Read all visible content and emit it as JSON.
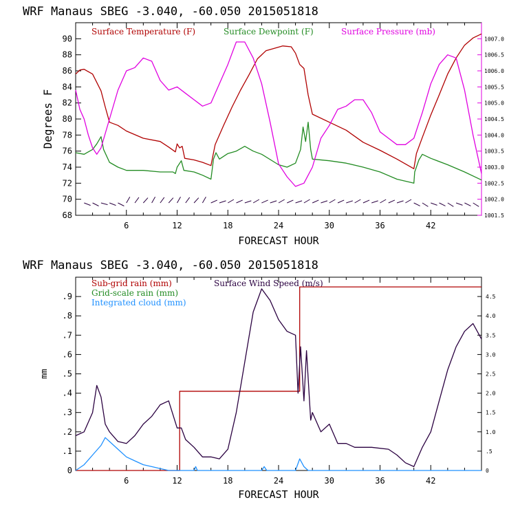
{
  "chart_data": [
    {
      "type": "line",
      "title": "WRF   Manaus SBEG   -3.040, -60.050  2015051818",
      "xlabel": "FORECAST HOUR",
      "ylabel": "Degrees F",
      "xlim": [
        0,
        48
      ],
      "x_ticks": [
        "6",
        "12",
        "18",
        "24",
        "30",
        "36",
        "42"
      ],
      "y_ticks": [
        "68",
        "70",
        "72",
        "74",
        "76",
        "78",
        "80",
        "82",
        "84",
        "86",
        "88",
        "90"
      ],
      "ylim": [
        68,
        92
      ],
      "y2_ticks": [
        "1001.5",
        "1002.0",
        "1002.5",
        "1003.0",
        "1003.5",
        "1004.0",
        "1004.5",
        "1005.0",
        "1005.5",
        "1006.0",
        "1006.5",
        "1007.0"
      ],
      "y2lim": [
        1001.5,
        1007.5
      ],
      "series": [
        {
          "name": "Surface Temperature (F)",
          "color": "#b00000",
          "axis": "left",
          "points": [
            [
              0,
              85.6
            ],
            [
              0.5,
              86.1
            ],
            [
              1,
              86.2
            ],
            [
              2,
              85.6
            ],
            [
              3,
              83.5
            ],
            [
              3.5,
              81.5
            ],
            [
              4,
              79.6
            ],
            [
              5,
              79.2
            ],
            [
              6,
              78.5
            ],
            [
              8,
              77.6
            ],
            [
              10,
              77.2
            ],
            [
              11,
              76.5
            ],
            [
              11.8,
              75.9
            ],
            [
              12,
              76.9
            ],
            [
              12.3,
              76.4
            ],
            [
              12.6,
              76.6
            ],
            [
              12.9,
              75.1
            ],
            [
              14,
              74.9
            ],
            [
              15,
              74.6
            ],
            [
              16,
              74.2
            ],
            [
              16.5,
              76.8
            ],
            [
              17.5,
              79.2
            ],
            [
              18.5,
              81.5
            ],
            [
              19.5,
              83.6
            ],
            [
              20.5,
              85.5
            ],
            [
              21.5,
              87.5
            ],
            [
              22.5,
              88.5
            ],
            [
              23.5,
              88.8
            ],
            [
              24.5,
              89.1
            ],
            [
              25.5,
              89.0
            ],
            [
              26,
              88.2
            ],
            [
              26.5,
              86.8
            ],
            [
              27,
              86.3
            ],
            [
              27.5,
              83.0
            ],
            [
              28,
              80.6
            ],
            [
              30,
              79.6
            ],
            [
              32,
              78.6
            ],
            [
              34,
              77.1
            ],
            [
              36,
              76.1
            ],
            [
              38,
              75.0
            ],
            [
              40,
              73.8
            ],
            [
              40.3,
              75.7
            ],
            [
              41,
              77.7
            ],
            [
              42,
              80.5
            ],
            [
              43,
              83.0
            ],
            [
              44,
              85.6
            ],
            [
              45,
              87.6
            ],
            [
              46,
              89.2
            ],
            [
              47,
              90.1
            ],
            [
              48,
              90.6
            ]
          ]
        },
        {
          "name": "Surface Dewpoint (F)",
          "color": "#228b22",
          "axis": "left",
          "points": [
            [
              0,
              75.8
            ],
            [
              1,
              75.6
            ],
            [
              2,
              76.2
            ],
            [
              2.5,
              76.9
            ],
            [
              3,
              77.8
            ],
            [
              3.3,
              76.2
            ],
            [
              4,
              74.6
            ],
            [
              5,
              74.0
            ],
            [
              6,
              73.6
            ],
            [
              8,
              73.6
            ],
            [
              10,
              73.4
            ],
            [
              11.5,
              73.4
            ],
            [
              11.8,
              73.2
            ],
            [
              12,
              74.0
            ],
            [
              12.5,
              74.8
            ],
            [
              12.8,
              73.6
            ],
            [
              14,
              73.4
            ],
            [
              15,
              73.0
            ],
            [
              16,
              72.5
            ],
            [
              16.3,
              75.0
            ],
            [
              16.6,
              75.8
            ],
            [
              17,
              75.0
            ],
            [
              18,
              75.7
            ],
            [
              19,
              76.0
            ],
            [
              20,
              76.6
            ],
            [
              21,
              76.0
            ],
            [
              22,
              75.6
            ],
            [
              24,
              74.3
            ],
            [
              25,
              74.0
            ],
            [
              26,
              74.5
            ],
            [
              26.6,
              76.2
            ],
            [
              26.9,
              79.0
            ],
            [
              27.2,
              77.2
            ],
            [
              27.5,
              79.6
            ],
            [
              27.8,
              76.2
            ],
            [
              28,
              75.0
            ],
            [
              30,
              74.8
            ],
            [
              32,
              74.5
            ],
            [
              34,
              74.0
            ],
            [
              36,
              73.4
            ],
            [
              38,
              72.5
            ],
            [
              40,
              72.0
            ],
            [
              40.1,
              73.4
            ],
            [
              40.6,
              74.9
            ],
            [
              41,
              75.6
            ],
            [
              42,
              75.1
            ],
            [
              44,
              74.3
            ],
            [
              46,
              73.4
            ],
            [
              48,
              72.4
            ]
          ]
        },
        {
          "name": "Surface Pressure (mb)",
          "color": "#e000e0",
          "axis": "right",
          "points": [
            [
              0,
              1005.4
            ],
            [
              0.5,
              1004.8
            ],
            [
              1,
              1004.5
            ],
            [
              1.5,
              1004.0
            ],
            [
              2,
              1003.6
            ],
            [
              2.5,
              1003.4
            ],
            [
              3,
              1003.6
            ],
            [
              4,
              1004.5
            ],
            [
              5,
              1005.4
            ],
            [
              6,
              1006.0
            ],
            [
              7,
              1006.1
            ],
            [
              8,
              1006.4
            ],
            [
              9,
              1006.3
            ],
            [
              10,
              1005.7
            ],
            [
              11,
              1005.4
            ],
            [
              12,
              1005.5
            ],
            [
              13,
              1005.3
            ],
            [
              14,
              1005.1
            ],
            [
              15,
              1004.9
            ],
            [
              16,
              1005.0
            ],
            [
              17,
              1005.6
            ],
            [
              18,
              1006.2
            ],
            [
              19,
              1006.9
            ],
            [
              20,
              1006.9
            ],
            [
              21,
              1006.4
            ],
            [
              22,
              1005.6
            ],
            [
              23,
              1004.4
            ],
            [
              24,
              1003.1
            ],
            [
              25,
              1002.7
            ],
            [
              26,
              1002.4
            ],
            [
              27,
              1002.5
            ],
            [
              28,
              1003.0
            ],
            [
              29,
              1003.9
            ],
            [
              30,
              1004.3
            ],
            [
              31,
              1004.8
            ],
            [
              32,
              1004.9
            ],
            [
              33,
              1005.1
            ],
            [
              34,
              1005.1
            ],
            [
              35,
              1004.7
            ],
            [
              36,
              1004.1
            ],
            [
              37,
              1003.9
            ],
            [
              38,
              1003.7
            ],
            [
              39,
              1003.7
            ],
            [
              40,
              1003.9
            ],
            [
              41,
              1004.7
            ],
            [
              42,
              1005.6
            ],
            [
              43,
              1006.2
            ],
            [
              44,
              1006.5
            ],
            [
              45,
              1006.4
            ],
            [
              46,
              1005.4
            ],
            [
              47,
              1004.0
            ],
            [
              48,
              1002.8
            ]
          ]
        }
      ]
    },
    {
      "type": "line",
      "title": "WRF   Manaus SBEG   -3.040, -60.050  2015051818",
      "xlabel": "FORECAST HOUR",
      "ylabel": "mm",
      "xlim": [
        0,
        48
      ],
      "x_ticks": [
        "6",
        "12",
        "18",
        "24",
        "30",
        "36",
        "42"
      ],
      "y_ticks": [
        "0",
        ".1",
        ".2",
        ".3",
        ".4",
        ".5",
        ".6",
        ".7",
        ".8",
        ".9"
      ],
      "ylim": [
        0,
        1.0
      ],
      "y2_ticks": [
        "0",
        ".5",
        "1.0",
        "1.5",
        "2.0",
        "2.5",
        "3.0",
        "3.5",
        "4.0",
        "4.5"
      ],
      "y2lim": [
        0,
        5.0
      ],
      "series": [
        {
          "name": "Sub-grid rain (mm)",
          "color": "#b00000",
          "axis": "left",
          "step": true,
          "points": [
            [
              0,
              0
            ],
            [
              12.3,
              0
            ],
            [
              12.3,
              0.41
            ],
            [
              26.5,
              0.41
            ],
            [
              26.5,
              0.95
            ],
            [
              48,
              0.95
            ]
          ]
        },
        {
          "name": "Grid-scale rain (mm)",
          "color": "#228b22",
          "axis": "left",
          "points": []
        },
        {
          "name": "Integrated cloud (mm)",
          "color": "#1e90ff",
          "axis": "left",
          "points": [
            [
              0,
              0
            ],
            [
              1,
              0.03
            ],
            [
              2,
              0.08
            ],
            [
              3,
              0.13
            ],
            [
              3.5,
              0.17
            ],
            [
              4,
              0.15
            ],
            [
              5,
              0.11
            ],
            [
              6,
              0.07
            ],
            [
              7,
              0.05
            ],
            [
              8,
              0.03
            ],
            [
              9,
              0.02
            ],
            [
              10,
              0.01
            ],
            [
              11,
              0
            ],
            [
              12,
              0
            ],
            [
              14,
              0
            ],
            [
              14.2,
              0.02
            ],
            [
              14.4,
              0
            ],
            [
              22,
              0
            ],
            [
              22.3,
              0.02
            ],
            [
              22.6,
              0
            ],
            [
              26,
              0
            ],
            [
              26.5,
              0.06
            ],
            [
              27,
              0.02
            ],
            [
              27.5,
              0
            ],
            [
              48,
              0
            ]
          ]
        },
        {
          "name": "Surface Wind Speed (m/s)",
          "color": "#2a0040",
          "axis": "right",
          "points": [
            [
              0,
              0.9
            ],
            [
              1,
              1.0
            ],
            [
              2,
              1.5
            ],
            [
              2.5,
              2.2
            ],
            [
              3,
              1.9
            ],
            [
              3.5,
              1.2
            ],
            [
              4,
              1.0
            ],
            [
              5,
              0.75
            ],
            [
              6,
              0.7
            ],
            [
              7,
              0.9
            ],
            [
              8,
              1.2
            ],
            [
              9,
              1.4
            ],
            [
              10,
              1.7
            ],
            [
              11,
              1.8
            ],
            [
              12,
              1.1
            ],
            [
              12.5,
              1.1
            ],
            [
              13,
              0.8
            ],
            [
              14,
              0.6
            ],
            [
              15,
              0.35
            ],
            [
              16,
              0.35
            ],
            [
              17,
              0.3
            ],
            [
              18,
              0.55
            ],
            [
              19,
              1.5
            ],
            [
              20,
              2.8
            ],
            [
              21,
              4.1
            ],
            [
              22,
              4.7
            ],
            [
              23,
              4.4
            ],
            [
              24,
              3.9
            ],
            [
              25,
              3.6
            ],
            [
              26,
              3.5
            ],
            [
              26.3,
              2.0
            ],
            [
              26.6,
              3.2
            ],
            [
              27,
              1.8
            ],
            [
              27.3,
              3.1
            ],
            [
              27.8,
              1.3
            ],
            [
              28,
              1.5
            ],
            [
              29,
              1.0
            ],
            [
              30,
              1.2
            ],
            [
              31,
              0.7
            ],
            [
              32,
              0.7
            ],
            [
              33,
              0.6
            ],
            [
              35,
              0.6
            ],
            [
              37,
              0.55
            ],
            [
              38,
              0.4
            ],
            [
              39,
              0.2
            ],
            [
              40,
              0.1
            ],
            [
              41,
              0.6
            ],
            [
              42,
              1.0
            ],
            [
              43,
              1.8
            ],
            [
              44,
              2.6
            ],
            [
              45,
              3.2
            ],
            [
              46,
              3.6
            ],
            [
              47,
              3.8
            ],
            [
              48,
              3.4
            ]
          ]
        }
      ]
    }
  ]
}
